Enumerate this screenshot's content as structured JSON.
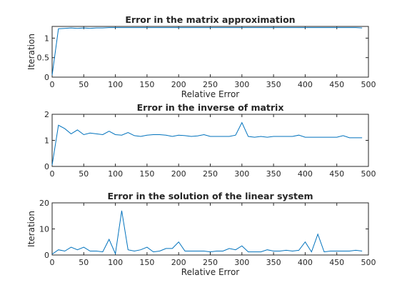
{
  "chart_data": [
    {
      "type": "line",
      "title": "Error in the matrix approximation",
      "xlabel": "Relative Error",
      "ylabel": "Iteration",
      "xlim": [
        0,
        500
      ],
      "ylim": [
        0,
        1.3
      ],
      "xticks": [
        0,
        50,
        100,
        150,
        200,
        250,
        300,
        350,
        400,
        450,
        500
      ],
      "yticks": [
        0,
        0.5,
        1
      ],
      "ytick_labels": [
        "0",
        "0.5",
        "1"
      ],
      "grid": false,
      "series": [
        {
          "color": "#0072bd",
          "x": [
            0,
            10,
            20,
            30,
            40,
            50,
            60,
            70,
            80,
            90,
            100,
            110,
            120,
            130,
            140,
            150,
            160,
            170,
            180,
            190,
            200,
            210,
            220,
            230,
            240,
            250,
            260,
            270,
            280,
            290,
            300,
            310,
            320,
            330,
            340,
            350,
            360,
            370,
            380,
            390,
            400,
            410,
            420,
            430,
            440,
            450,
            460,
            470,
            480,
            490
          ],
          "y": [
            0.05,
            1.24,
            1.25,
            1.26,
            1.25,
            1.26,
            1.25,
            1.26,
            1.26,
            1.27,
            1.27,
            1.27,
            1.27,
            1.27,
            1.27,
            1.27,
            1.27,
            1.27,
            1.27,
            1.27,
            1.27,
            1.27,
            1.27,
            1.27,
            1.27,
            1.27,
            1.27,
            1.27,
            1.27,
            1.27,
            1.27,
            1.27,
            1.27,
            1.27,
            1.27,
            1.27,
            1.27,
            1.27,
            1.27,
            1.27,
            1.27,
            1.27,
            1.27,
            1.27,
            1.27,
            1.27,
            1.27,
            1.27,
            1.27,
            1.26
          ]
        }
      ]
    },
    {
      "type": "line",
      "title": "Error in the inverse of matrix",
      "xlabel": "",
      "ylabel": "",
      "xlim": [
        0,
        500
      ],
      "ylim": [
        0,
        2
      ],
      "xticks": [
        0,
        50,
        100,
        150,
        200,
        250,
        300,
        350,
        400,
        450,
        500
      ],
      "yticks": [
        0,
        1,
        2
      ],
      "ytick_labels": [
        "0",
        "1",
        "2"
      ],
      "grid": false,
      "series": [
        {
          "color": "#0072bd",
          "x": [
            0,
            10,
            20,
            30,
            40,
            50,
            60,
            70,
            80,
            90,
            100,
            110,
            120,
            130,
            140,
            150,
            160,
            170,
            180,
            190,
            200,
            210,
            220,
            230,
            240,
            250,
            260,
            270,
            280,
            290,
            300,
            310,
            320,
            330,
            340,
            350,
            360,
            370,
            380,
            390,
            400,
            410,
            420,
            430,
            440,
            450,
            460,
            470,
            480,
            490
          ],
          "y": [
            0.05,
            1.58,
            1.45,
            1.25,
            1.4,
            1.22,
            1.28,
            1.25,
            1.22,
            1.35,
            1.22,
            1.2,
            1.3,
            1.18,
            1.15,
            1.2,
            1.22,
            1.22,
            1.2,
            1.15,
            1.2,
            1.18,
            1.15,
            1.17,
            1.22,
            1.15,
            1.15,
            1.15,
            1.15,
            1.2,
            1.68,
            1.15,
            1.12,
            1.15,
            1.12,
            1.15,
            1.15,
            1.15,
            1.15,
            1.2,
            1.12,
            1.12,
            1.12,
            1.12,
            1.12,
            1.12,
            1.18,
            1.1,
            1.1,
            1.1
          ]
        }
      ]
    },
    {
      "type": "line",
      "title": "Error in the solution of the linear system",
      "xlabel": "Relative Error",
      "ylabel": "Iteration",
      "xlim": [
        0,
        500
      ],
      "ylim": [
        0,
        20
      ],
      "xticks": [
        0,
        50,
        100,
        150,
        200,
        250,
        300,
        350,
        400,
        450,
        500
      ],
      "yticks": [
        0,
        10,
        20
      ],
      "ytick_labels": [
        "0",
        "10",
        "20"
      ],
      "grid": false,
      "series": [
        {
          "color": "#0072bd",
          "x": [
            0,
            10,
            20,
            30,
            40,
            50,
            60,
            70,
            80,
            90,
            100,
            110,
            120,
            130,
            140,
            150,
            160,
            170,
            180,
            190,
            200,
            210,
            220,
            230,
            240,
            250,
            260,
            270,
            280,
            290,
            300,
            310,
            320,
            330,
            340,
            350,
            360,
            370,
            380,
            390,
            400,
            410,
            420,
            430,
            440,
            450,
            460,
            470,
            480,
            490
          ],
          "y": [
            0.3,
            2,
            1.5,
            3,
            2,
            3,
            1.5,
            1.5,
            1.2,
            6,
            0.5,
            17,
            2,
            1.5,
            2,
            3,
            1.2,
            1.5,
            2.5,
            2.5,
            5,
            1.5,
            1.5,
            1.5,
            1.5,
            1.2,
            1.5,
            1.5,
            2.5,
            2,
            3.5,
            1.2,
            1.2,
            1.2,
            2,
            1.5,
            1.5,
            1.8,
            1.5,
            1.8,
            5,
            1.2,
            8,
            1.2,
            1.5,
            1.5,
            1.5,
            1.5,
            1.8,
            1.5
          ]
        }
      ]
    }
  ]
}
